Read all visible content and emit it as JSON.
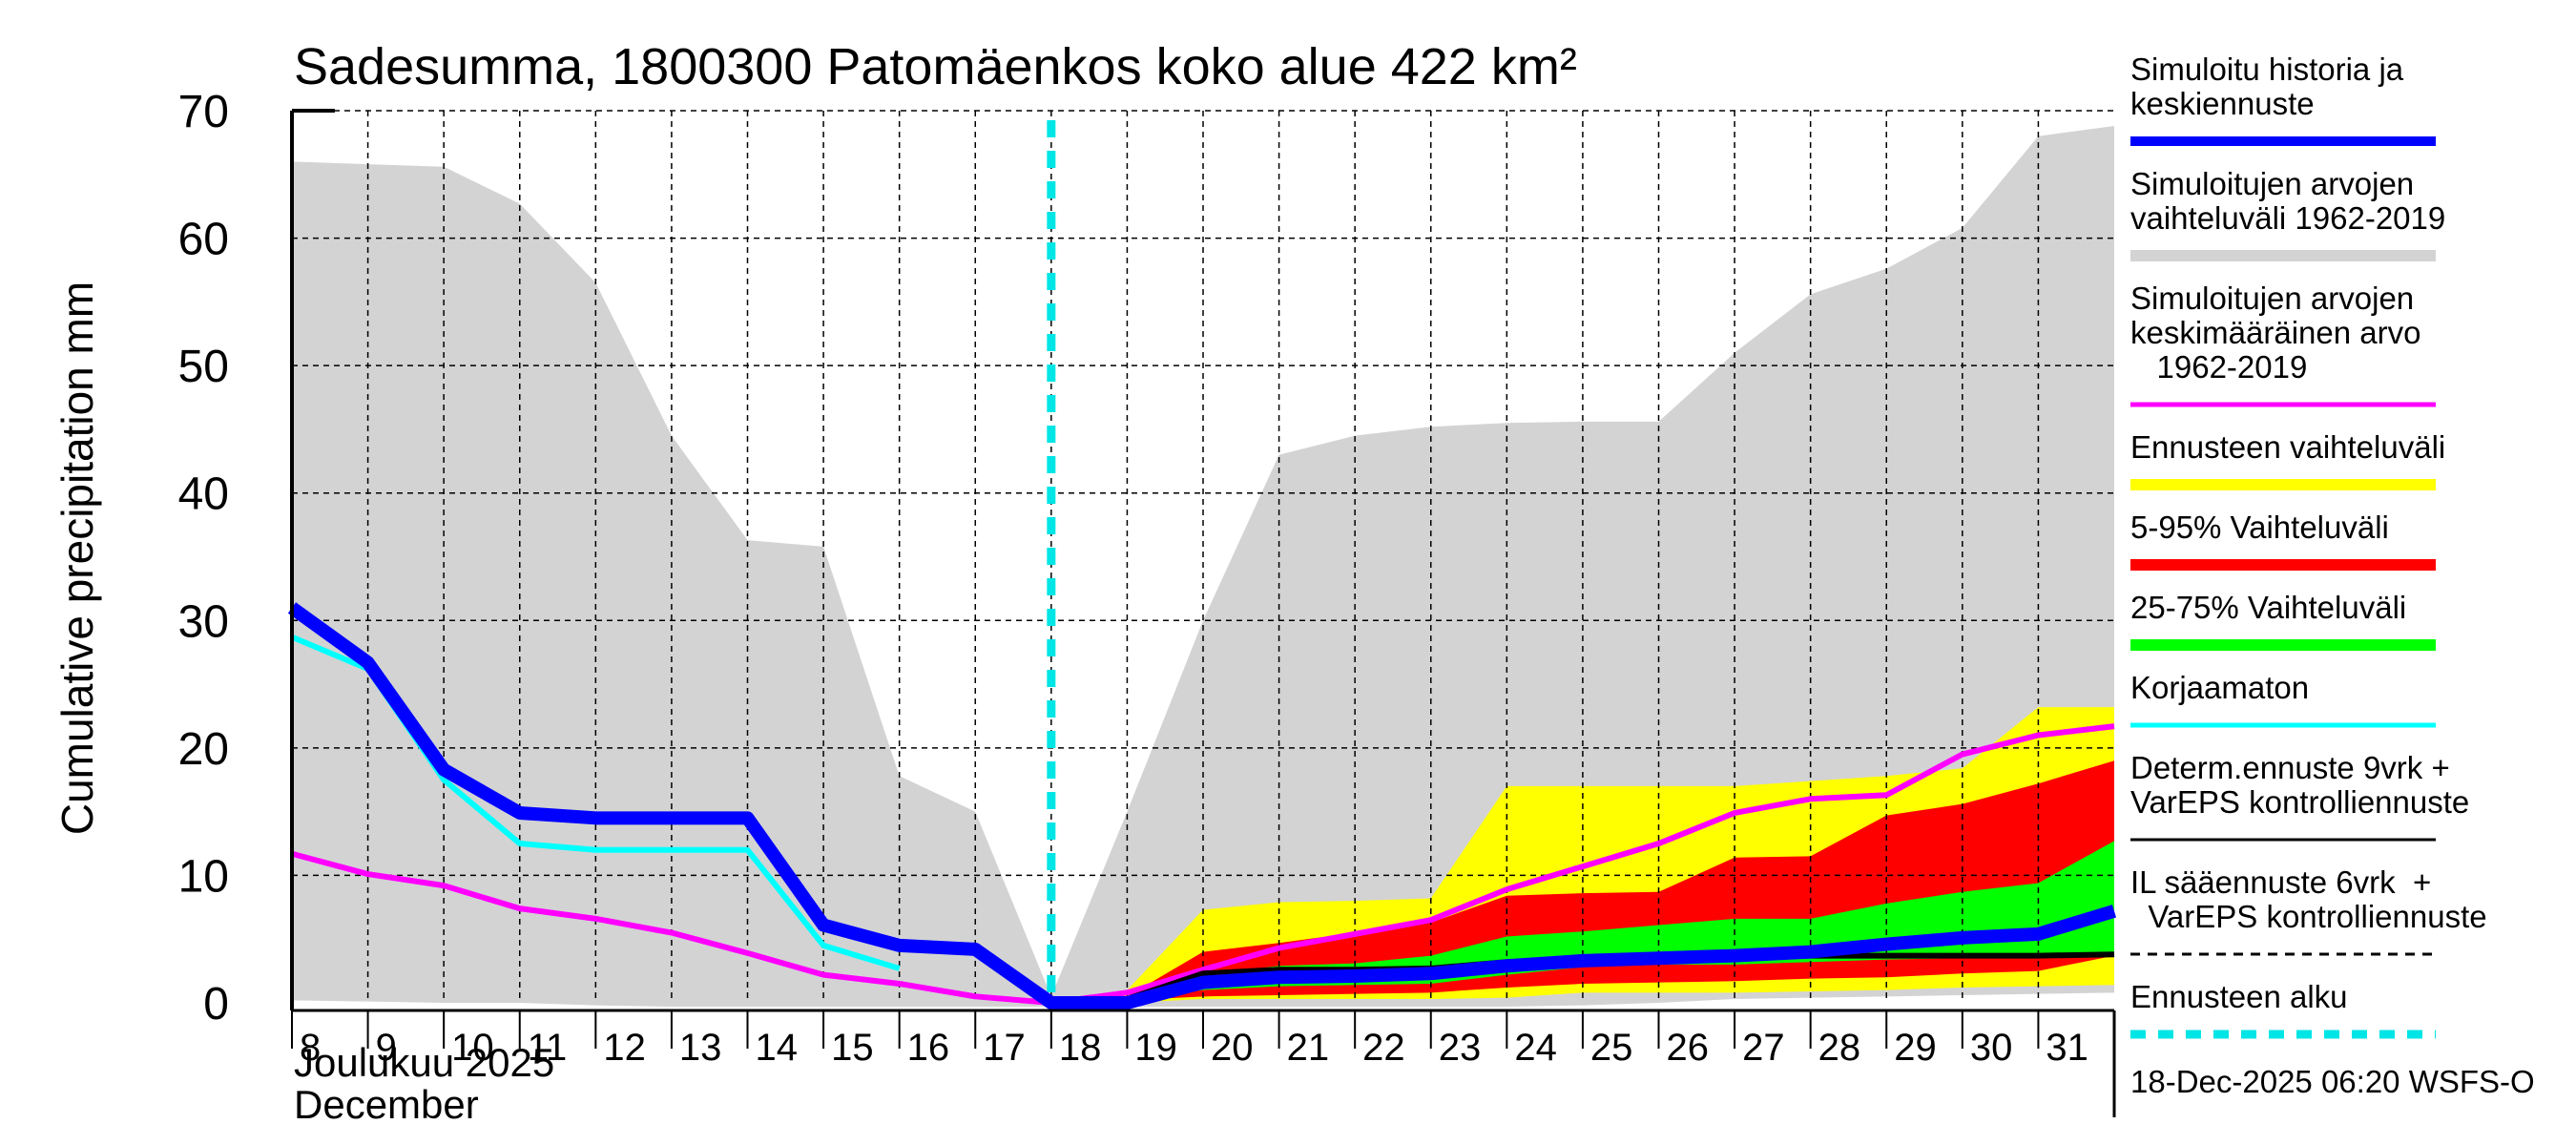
{
  "chart_data": {
    "type": "area",
    "title": "Sadesumma, 1800300 Patomäenkos koko alue 422 km²",
    "ylabel": "Cumulative precipitation   mm",
    "xlabel_lines": [
      "Joulukuu  2025",
      "December"
    ],
    "ylim": [
      0,
      70
    ],
    "yticks": [
      0,
      10,
      20,
      30,
      40,
      50,
      60,
      70
    ],
    "xlim_days": [
      8,
      32
    ],
    "xticks": [
      8,
      9,
      10,
      11,
      12,
      13,
      14,
      15,
      16,
      17,
      18,
      19,
      20,
      21,
      22,
      23,
      24,
      25,
      26,
      27,
      28,
      29,
      30,
      31
    ],
    "grid": true,
    "legend_position": "right",
    "forecast_start_day": 18,
    "timestamp": "18-Dec-2025 06:20 WSFS-O",
    "colors": {
      "history": "#0000ff",
      "range_historical": "#d3d3d3",
      "mean_historical": "#ff00ff",
      "forecast_range": "#ffff00",
      "p5_95": "#ff0000",
      "p25_75": "#00ff00",
      "uncorrected": "#00ffff",
      "determ": "#000000",
      "forecast_start": "#00e5e5"
    },
    "series": [
      {
        "name": "Simuloitujen arvojen vaihteluväli 1962-2019",
        "kind": "band",
        "key": "range_historical",
        "x": [
          8,
          9,
          10,
          11,
          12,
          13,
          14,
          15,
          16,
          17,
          18,
          19,
          20,
          21,
          22,
          23,
          24,
          25,
          26,
          27,
          28,
          29,
          30,
          31,
          32
        ],
        "upper": [
          66,
          65.8,
          65.6,
          62.7,
          56.5,
          44.5,
          36.3,
          35.8,
          17.8,
          15,
          0.5,
          15,
          30,
          43,
          44.5,
          45.2,
          45.5,
          45.6,
          45.6,
          51,
          55.6,
          57.6,
          60.8,
          68,
          68.8
        ],
        "lower": [
          0.2,
          0.1,
          0,
          0,
          -0.2,
          -0.3,
          -0.3,
          -0.3,
          -0.3,
          -0.3,
          -0.3,
          -0.3,
          -0.3,
          -0.3,
          -0.3,
          -0.3,
          -0.3,
          -0.2,
          0,
          0.3,
          0.4,
          0.5,
          0.6,
          0.7,
          0.8
        ]
      },
      {
        "name": "Ennusteen vaihteluväli",
        "kind": "band",
        "key": "forecast_range",
        "x": [
          18,
          19,
          20,
          21,
          22,
          23,
          24,
          25,
          26,
          27,
          28,
          29,
          30,
          31,
          32
        ],
        "upper": [
          0,
          1.0,
          7.3,
          7.9,
          8.0,
          8.2,
          17,
          17,
          17,
          17,
          17.4,
          17.8,
          18.4,
          23.2,
          23.2
        ],
        "lower": [
          0,
          0,
          0.3,
          0.3,
          0.3,
          0.3,
          0.4,
          0.8,
          0.8,
          0.8,
          0.9,
          1.0,
          1.2,
          1.3,
          1.4
        ]
      },
      {
        "name": "5-95% Vaihteluväli",
        "kind": "band",
        "key": "p5_95",
        "x": [
          18,
          19,
          20,
          21,
          22,
          23,
          24,
          25,
          26,
          27,
          28,
          29,
          30,
          31,
          32
        ],
        "upper": [
          0,
          0.5,
          4.0,
          4.7,
          5.5,
          6.3,
          8.4,
          8.6,
          8.7,
          11.4,
          11.5,
          14.7,
          15.6,
          17.2,
          19.0
        ],
        "lower": [
          0,
          0.2,
          0.5,
          0.6,
          0.7,
          0.8,
          1.2,
          1.5,
          1.6,
          1.7,
          1.9,
          2.0,
          2.3,
          2.5,
          3.7
        ]
      },
      {
        "name": "25-75% Vaihteluväli",
        "kind": "band",
        "key": "p25_75",
        "x": [
          18,
          19,
          20,
          21,
          22,
          23,
          24,
          25,
          26,
          27,
          28,
          29,
          30,
          31,
          32
        ],
        "upper": [
          0,
          0.3,
          2.2,
          2.9,
          3.1,
          3.7,
          5.2,
          5.6,
          6.1,
          6.6,
          6.6,
          7.8,
          8.7,
          9.4,
          12.7
        ],
        "lower": [
          0,
          0.2,
          1.0,
          1.3,
          1.4,
          1.5,
          2.2,
          2.8,
          3.0,
          3.0,
          3.2,
          3.4,
          3.5,
          3.6,
          3.7
        ]
      },
      {
        "name": "Simuloitujen arvojen keskimääräinen arvo 1962-2019",
        "kind": "line",
        "key": "mean_historical",
        "x": [
          8,
          9,
          10,
          11,
          12,
          13,
          14,
          15,
          16,
          17,
          18,
          19,
          20,
          21,
          22,
          23,
          24,
          25,
          26,
          27,
          28,
          29,
          30,
          31,
          32
        ],
        "y": [
          11.7,
          10.1,
          9.2,
          7.4,
          6.6,
          5.5,
          3.9,
          2.2,
          1.5,
          0.5,
          0,
          0.8,
          2.6,
          4.3,
          5.4,
          6.5,
          8.9,
          10.7,
          12.5,
          14.9,
          16.0,
          16.3,
          19.5,
          21.0,
          21.7
        ]
      },
      {
        "name": "Korjaamaton",
        "kind": "line",
        "key": "uncorrected",
        "x": [
          8,
          9,
          10,
          11,
          12,
          13,
          14,
          15,
          16
        ],
        "y": [
          28.7,
          26.2,
          17.5,
          12.5,
          12.0,
          12.0,
          12.0,
          4.5,
          2.7
        ]
      },
      {
        "name": "Determ.ennuste 9vrk + VarEPS kontrolliennuste",
        "kind": "line",
        "key": "determ",
        "x": [
          18,
          19,
          20,
          21,
          22,
          23,
          24,
          25,
          26,
          27,
          28,
          29,
          30,
          31,
          32
        ],
        "y": [
          0,
          0.3,
          2.3,
          2.6,
          2.6,
          2.7,
          3.2,
          3.4,
          3.5,
          3.6,
          3.7,
          3.7,
          3.7,
          3.7,
          3.8
        ]
      },
      {
        "name": "Simuloitu historia ja keskiennuste",
        "kind": "line",
        "key": "history",
        "x": [
          8,
          9,
          10,
          11,
          12,
          13,
          14,
          15,
          16,
          17,
          18,
          19,
          20,
          21,
          22,
          23,
          24,
          25,
          26,
          27,
          28,
          29,
          30,
          31,
          32
        ],
        "y": [
          31,
          26.7,
          18.3,
          14.9,
          14.5,
          14.5,
          14.5,
          6.1,
          4.5,
          4.2,
          0,
          0,
          1.6,
          2.0,
          2.1,
          2.3,
          2.9,
          3.3,
          3.5,
          3.7,
          4.0,
          4.6,
          5.1,
          5.4,
          7.2
        ]
      }
    ],
    "legend": [
      {
        "lines": [
          "Simuloitu historia ja",
          "keskiennuste"
        ],
        "key": "history",
        "style": "thick"
      },
      {
        "lines": [
          "Simuloitujen arvojen",
          "vaihteluväli 1962-2019"
        ],
        "key": "range_historical",
        "style": "band"
      },
      {
        "lines": [
          "Simuloitujen arvojen",
          "keskimääräinen arvo",
          "   1962-2019"
        ],
        "key": "mean_historical",
        "style": "thin"
      },
      {
        "lines": [
          "Ennusteen vaihteluväli"
        ],
        "key": "forecast_range",
        "style": "band"
      },
      {
        "lines": [
          "5-95% Vaihteluväli"
        ],
        "key": "p5_95",
        "style": "band"
      },
      {
        "lines": [
          "25-75% Vaihteluväli"
        ],
        "key": "p25_75",
        "style": "band"
      },
      {
        "lines": [
          "Korjaamaton"
        ],
        "key": "uncorrected",
        "style": "thin"
      },
      {
        "lines": [
          "Determ.ennuste 9vrk +",
          "VarEPS kontrolliennuste"
        ],
        "key": "determ",
        "style": "black"
      },
      {
        "lines": [
          "IL sääennuste 6vrk  +",
          "  VarEPS kontrolliennuste"
        ],
        "key": "determ",
        "style": "dashed"
      },
      {
        "lines": [
          "Ennusteen alku"
        ],
        "key": "forecast_start",
        "style": "cyan-dashed"
      }
    ]
  }
}
